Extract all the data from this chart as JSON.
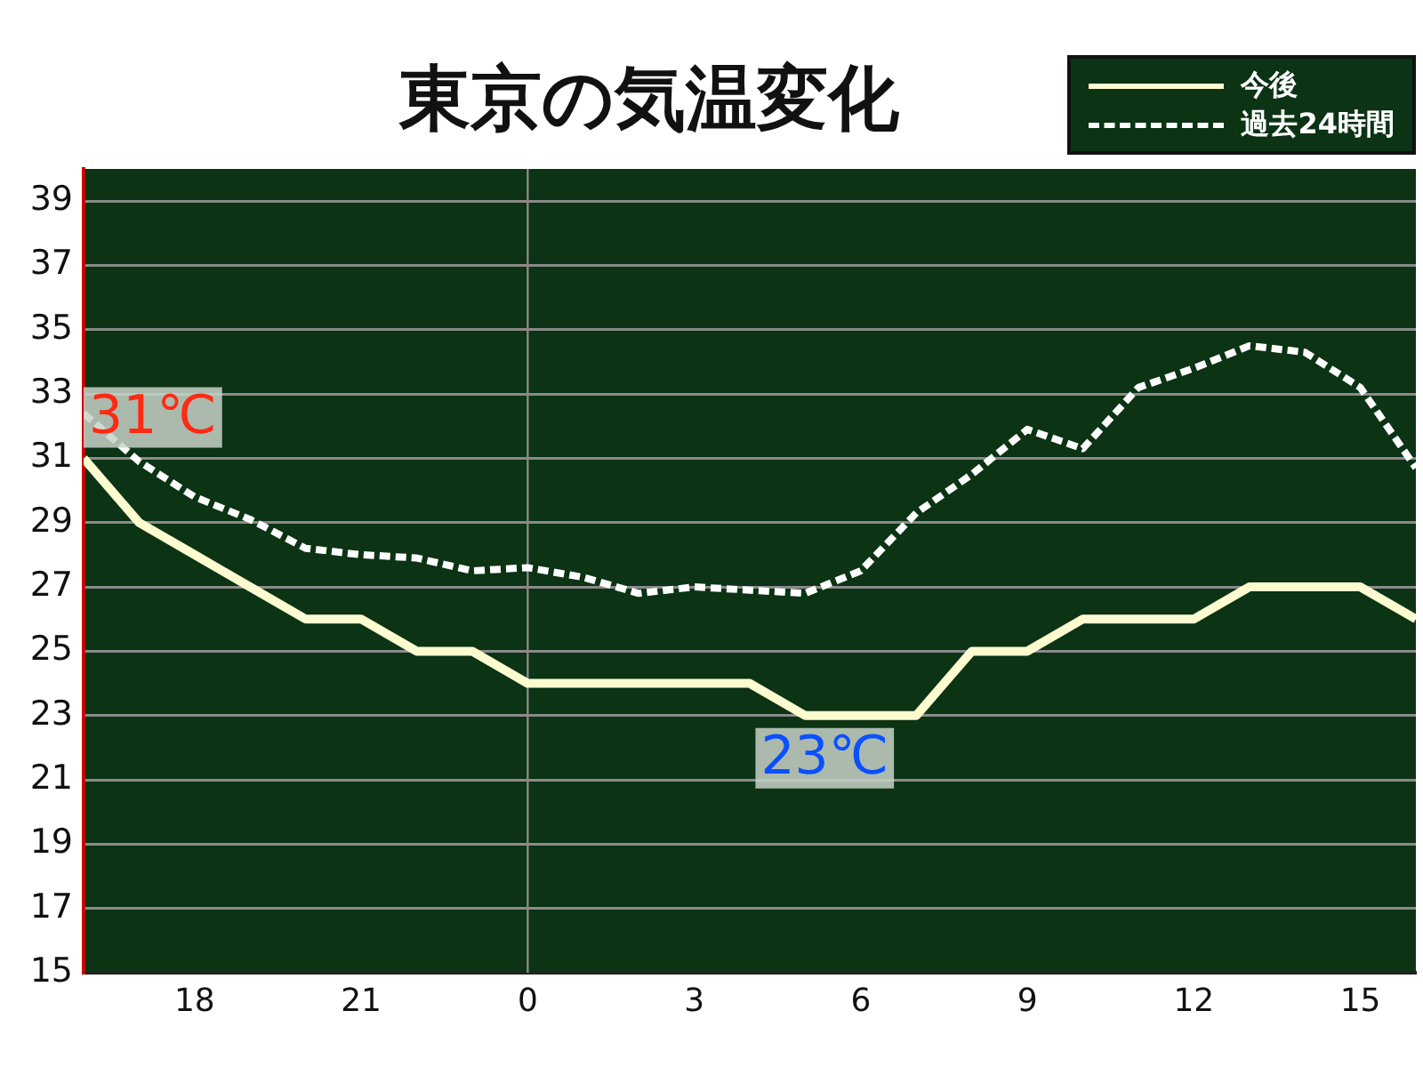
{
  "chart_data": {
    "type": "line",
    "title": "東京の気温変化",
    "categories": [
      null,
      null,
      "18",
      null,
      null,
      "21",
      null,
      null,
      "0",
      null,
      null,
      "3",
      null,
      null,
      "6",
      null,
      null,
      "9",
      null,
      null,
      "12",
      null,
      null,
      "15",
      null
    ],
    "series": [
      {
        "name": "今後",
        "color": "#fdfbd0",
        "line_style": "solid",
        "values": [
          31,
          29,
          28,
          27,
          26,
          26,
          25,
          25,
          24,
          24,
          24,
          24,
          24,
          23,
          23,
          23,
          25,
          25,
          26,
          26,
          26,
          27,
          27,
          27,
          26
        ]
      },
      {
        "name": "過去24時間",
        "color": "#ffffff",
        "line_style": "dashed",
        "values": [
          32.4,
          30.9,
          29.8,
          29.1,
          28.2,
          28.0,
          27.9,
          27.5,
          27.6,
          27.3,
          26.8,
          27.0,
          26.9,
          26.8,
          27.5,
          29.3,
          30.5,
          31.9,
          31.3,
          33.2,
          33.8,
          34.5,
          34.3,
          33.2,
          30.7
        ]
      }
    ],
    "ylim": [
      15,
      40
    ],
    "yticks": [
      15,
      17,
      19,
      21,
      23,
      25,
      27,
      29,
      31,
      33,
      35,
      37,
      39
    ],
    "grid": "y",
    "legend": "top right",
    "marker": "none",
    "ref_lines": [
      {
        "axis": "x",
        "value": "0",
        "color": "#8a8a8a"
      }
    ],
    "annotations": [
      {
        "text": "31℃",
        "y": 31
      },
      {
        "text": "23℃",
        "y": 23
      }
    ]
  }
}
